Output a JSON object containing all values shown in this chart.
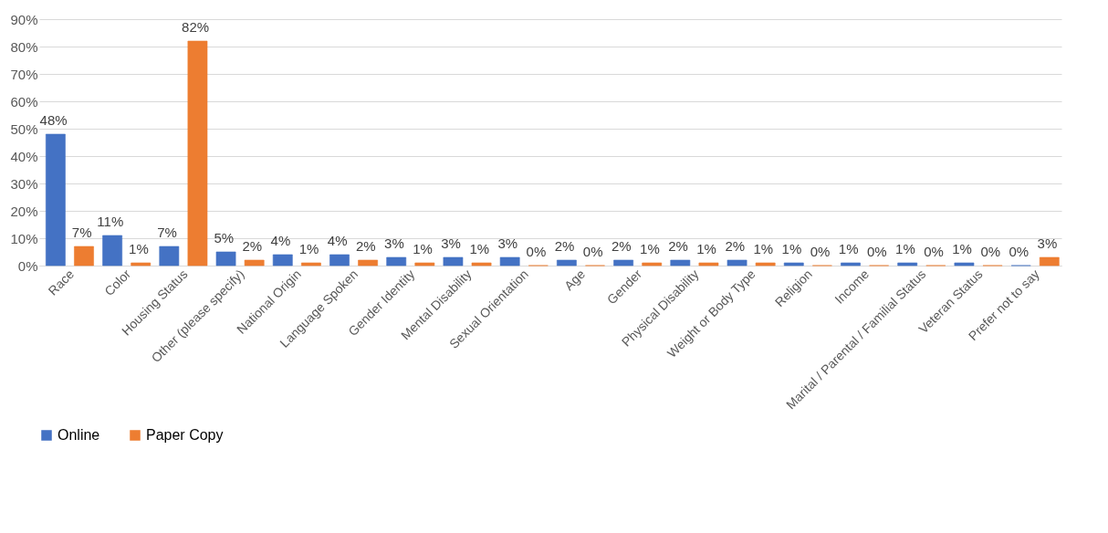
{
  "chart_data": {
    "type": "bar",
    "categories": [
      "Race",
      "Color",
      "Housing Status",
      "Other (please specify)",
      "National Origin",
      "Language Spoken",
      "Gender Identity",
      "Mental Disability",
      "Sexual Orientation",
      "Age",
      "Gender",
      "Physical Disability",
      "Weight or Body Type",
      "Religion",
      "Income",
      "Marital / Parental / Familial Status",
      "Veteran Status",
      "Prefer not to say"
    ],
    "series": [
      {
        "name": "Online",
        "color": "#4472c4",
        "values": [
          48,
          11,
          7,
          5,
          4,
          4,
          3,
          3,
          3,
          2,
          2,
          2,
          2,
          1,
          1,
          1,
          1,
          0
        ],
        "value_labels": [
          "48%",
          "11%",
          "7%",
          "5%",
          "4%",
          "4%",
          "3%",
          "3%",
          "3%",
          "2%",
          "2%",
          "2%",
          "2%",
          "1%",
          "1%",
          "1%",
          "1%",
          "0%"
        ]
      },
      {
        "name": "Paper Copy",
        "color": "#ed7d31",
        "values": [
          7,
          1,
          82,
          2,
          1,
          2,
          1,
          1,
          0,
          0,
          1,
          1,
          1,
          0,
          0,
          0,
          0,
          3
        ],
        "value_labels": [
          "7%",
          "1%",
          "82%",
          "2%",
          "1%",
          "2%",
          "1%",
          "1%",
          "0%",
          "0%",
          "1%",
          "1%",
          "1%",
          "0%",
          "0%",
          "0%",
          "0%",
          "3%"
        ]
      }
    ],
    "ylim": [
      0,
      90
    ],
    "yticks": [
      {
        "value": 0,
        "label": "0%"
      },
      {
        "value": 10,
        "label": "10%"
      },
      {
        "value": 20,
        "label": "20%"
      },
      {
        "value": 30,
        "label": "30%"
      },
      {
        "value": 40,
        "label": "40%"
      },
      {
        "value": 50,
        "label": "50%"
      },
      {
        "value": 60,
        "label": "60%"
      },
      {
        "value": 70,
        "label": "70%"
      },
      {
        "value": 80,
        "label": "80%"
      },
      {
        "value": 90,
        "label": "90%"
      }
    ],
    "grid": "y",
    "legend": "bottom"
  }
}
